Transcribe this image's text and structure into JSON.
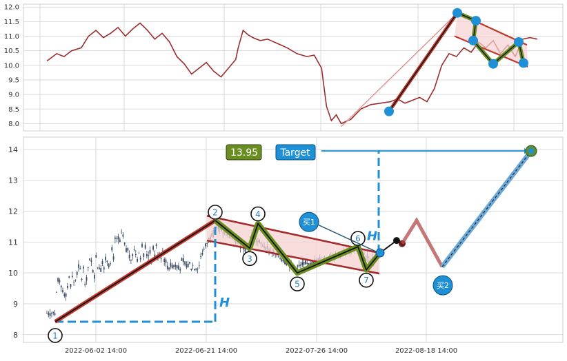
{
  "chart_data": [
    {
      "type": "line",
      "panel": "overview",
      "title": "",
      "xlabel": "",
      "ylabel": "",
      "ylim": [
        7.75,
        12.1
      ],
      "yticks": [
        "8.0",
        "8.5",
        "9.0",
        "9.5",
        "10.0",
        "10.5",
        "11.0",
        "11.5",
        "12.0"
      ],
      "grid": true,
      "colors": {
        "line": "#9b2c2c",
        "marker": "#1f8fd6",
        "thrust": "#c0392b",
        "zigzag": "#6b8e23",
        "channel": "#c0392b",
        "fill": "#f6d2d2"
      },
      "series": [
        {
          "values": [
            [
              0,
              10.15
            ],
            [
              0.02,
              10.4
            ],
            [
              0.035,
              10.3
            ],
            [
              0.05,
              10.5
            ],
            [
              0.07,
              10.6
            ],
            [
              0.085,
              11.0
            ],
            [
              0.1,
              11.2
            ],
            [
              0.115,
              10.95
            ],
            [
              0.13,
              11.1
            ],
            [
              0.145,
              11.3
            ],
            [
              0.16,
              11.0
            ],
            [
              0.175,
              11.25
            ],
            [
              0.19,
              11.45
            ],
            [
              0.205,
              11.2
            ],
            [
              0.22,
              10.9
            ],
            [
              0.235,
              11.1
            ],
            [
              0.25,
              10.8
            ],
            [
              0.265,
              10.3
            ],
            [
              0.28,
              10.05
            ],
            [
              0.295,
              9.7
            ],
            [
              0.31,
              9.9
            ],
            [
              0.325,
              10.1
            ],
            [
              0.34,
              9.8
            ],
            [
              0.355,
              9.6
            ],
            [
              0.37,
              9.9
            ],
            [
              0.385,
              10.2
            ],
            [
              0.39,
              10.6
            ],
            [
              0.4,
              11.2
            ],
            [
              0.41,
              11.05
            ],
            [
              0.42,
              10.95
            ],
            [
              0.435,
              10.85
            ],
            [
              0.45,
              10.9
            ],
            [
              0.47,
              10.75
            ],
            [
              0.49,
              10.6
            ],
            [
              0.51,
              10.4
            ],
            [
              0.53,
              10.3
            ],
            [
              0.545,
              10.35
            ],
            [
              0.56,
              9.9
            ],
            [
              0.57,
              8.6
            ],
            [
              0.58,
              8.1
            ],
            [
              0.59,
              8.3
            ],
            [
              0.6,
              8.0
            ],
            [
              0.62,
              8.15
            ],
            [
              0.64,
              8.5
            ],
            [
              0.66,
              8.65
            ],
            [
              0.68,
              8.7
            ],
            [
              0.7,
              8.75
            ],
            [
              0.715,
              8.85
            ],
            [
              0.73,
              8.7
            ],
            [
              0.745,
              8.8
            ],
            [
              0.76,
              8.9
            ],
            [
              0.775,
              8.75
            ],
            [
              0.79,
              9.2
            ],
            [
              0.805,
              10.0
            ],
            [
              0.82,
              10.4
            ],
            [
              0.835,
              10.3
            ],
            [
              0.85,
              10.6
            ],
            [
              0.865,
              10.45
            ],
            [
              0.88,
              10.8
            ],
            [
              0.895,
              10.6
            ],
            [
              0.91,
              10.85
            ],
            [
              0.925,
              10.4
            ],
            [
              0.94,
              10.7
            ],
            [
              0.955,
              10.3
            ],
            [
              0.97,
              10.9
            ],
            [
              0.985,
              10.95
            ],
            [
              1.0,
              10.9
            ]
          ]
        }
      ],
      "markers": [
        8.42,
        11.8,
        11.53,
        10.85,
        10.05,
        10.8,
        10.08
      ],
      "target_line": {
        "from": 7.9,
        "to": 11.8
      }
    },
    {
      "type": "candlestick",
      "panel": "main",
      "title": "",
      "xlabel": "",
      "ylabel": "",
      "ylim": [
        7.75,
        14.4
      ],
      "yticks": [
        "8",
        "9",
        "10",
        "11",
        "12",
        "13",
        "14"
      ],
      "xticks": [
        "2022-06-02 14:00",
        "2022-06-21 14:00",
        "2022-07-26 14:00",
        "2022-08-18 14:00"
      ],
      "grid": true,
      "colors": {
        "candle": "#3b4a63",
        "thrust": "#c0392b",
        "zigzag_outer": "#6b8e23",
        "zigzag_inner": "#111111",
        "channel": "#a52a2a",
        "fill": "#f6d2d2",
        "guide": "#1f8fd6",
        "projection": "#b24a4a",
        "target": "#1f8fd6",
        "target_fill": "#6aa9d8"
      },
      "pattern_points": [
        {
          "label": "1",
          "value": 8.42
        },
        {
          "label": "2",
          "value": 11.7
        },
        {
          "label": "3",
          "value": 10.8
        },
        {
          "label": "4",
          "value": 11.6
        },
        {
          "label": "5",
          "value": 10.0
        },
        {
          "label": "6",
          "value": 10.85
        },
        {
          "label": "7",
          "value": 10.1
        }
      ],
      "breakout": {
        "buy1_value": 10.65,
        "next_values": [
          11.05,
          10.95
        ],
        "projection_values": [
          11.7,
          10.2
        ]
      },
      "target": {
        "label": "Target",
        "price_label": "13.95",
        "value": 13.95
      },
      "buy_labels": [
        "买1",
        "买2"
      ],
      "height_label": "H"
    }
  ]
}
